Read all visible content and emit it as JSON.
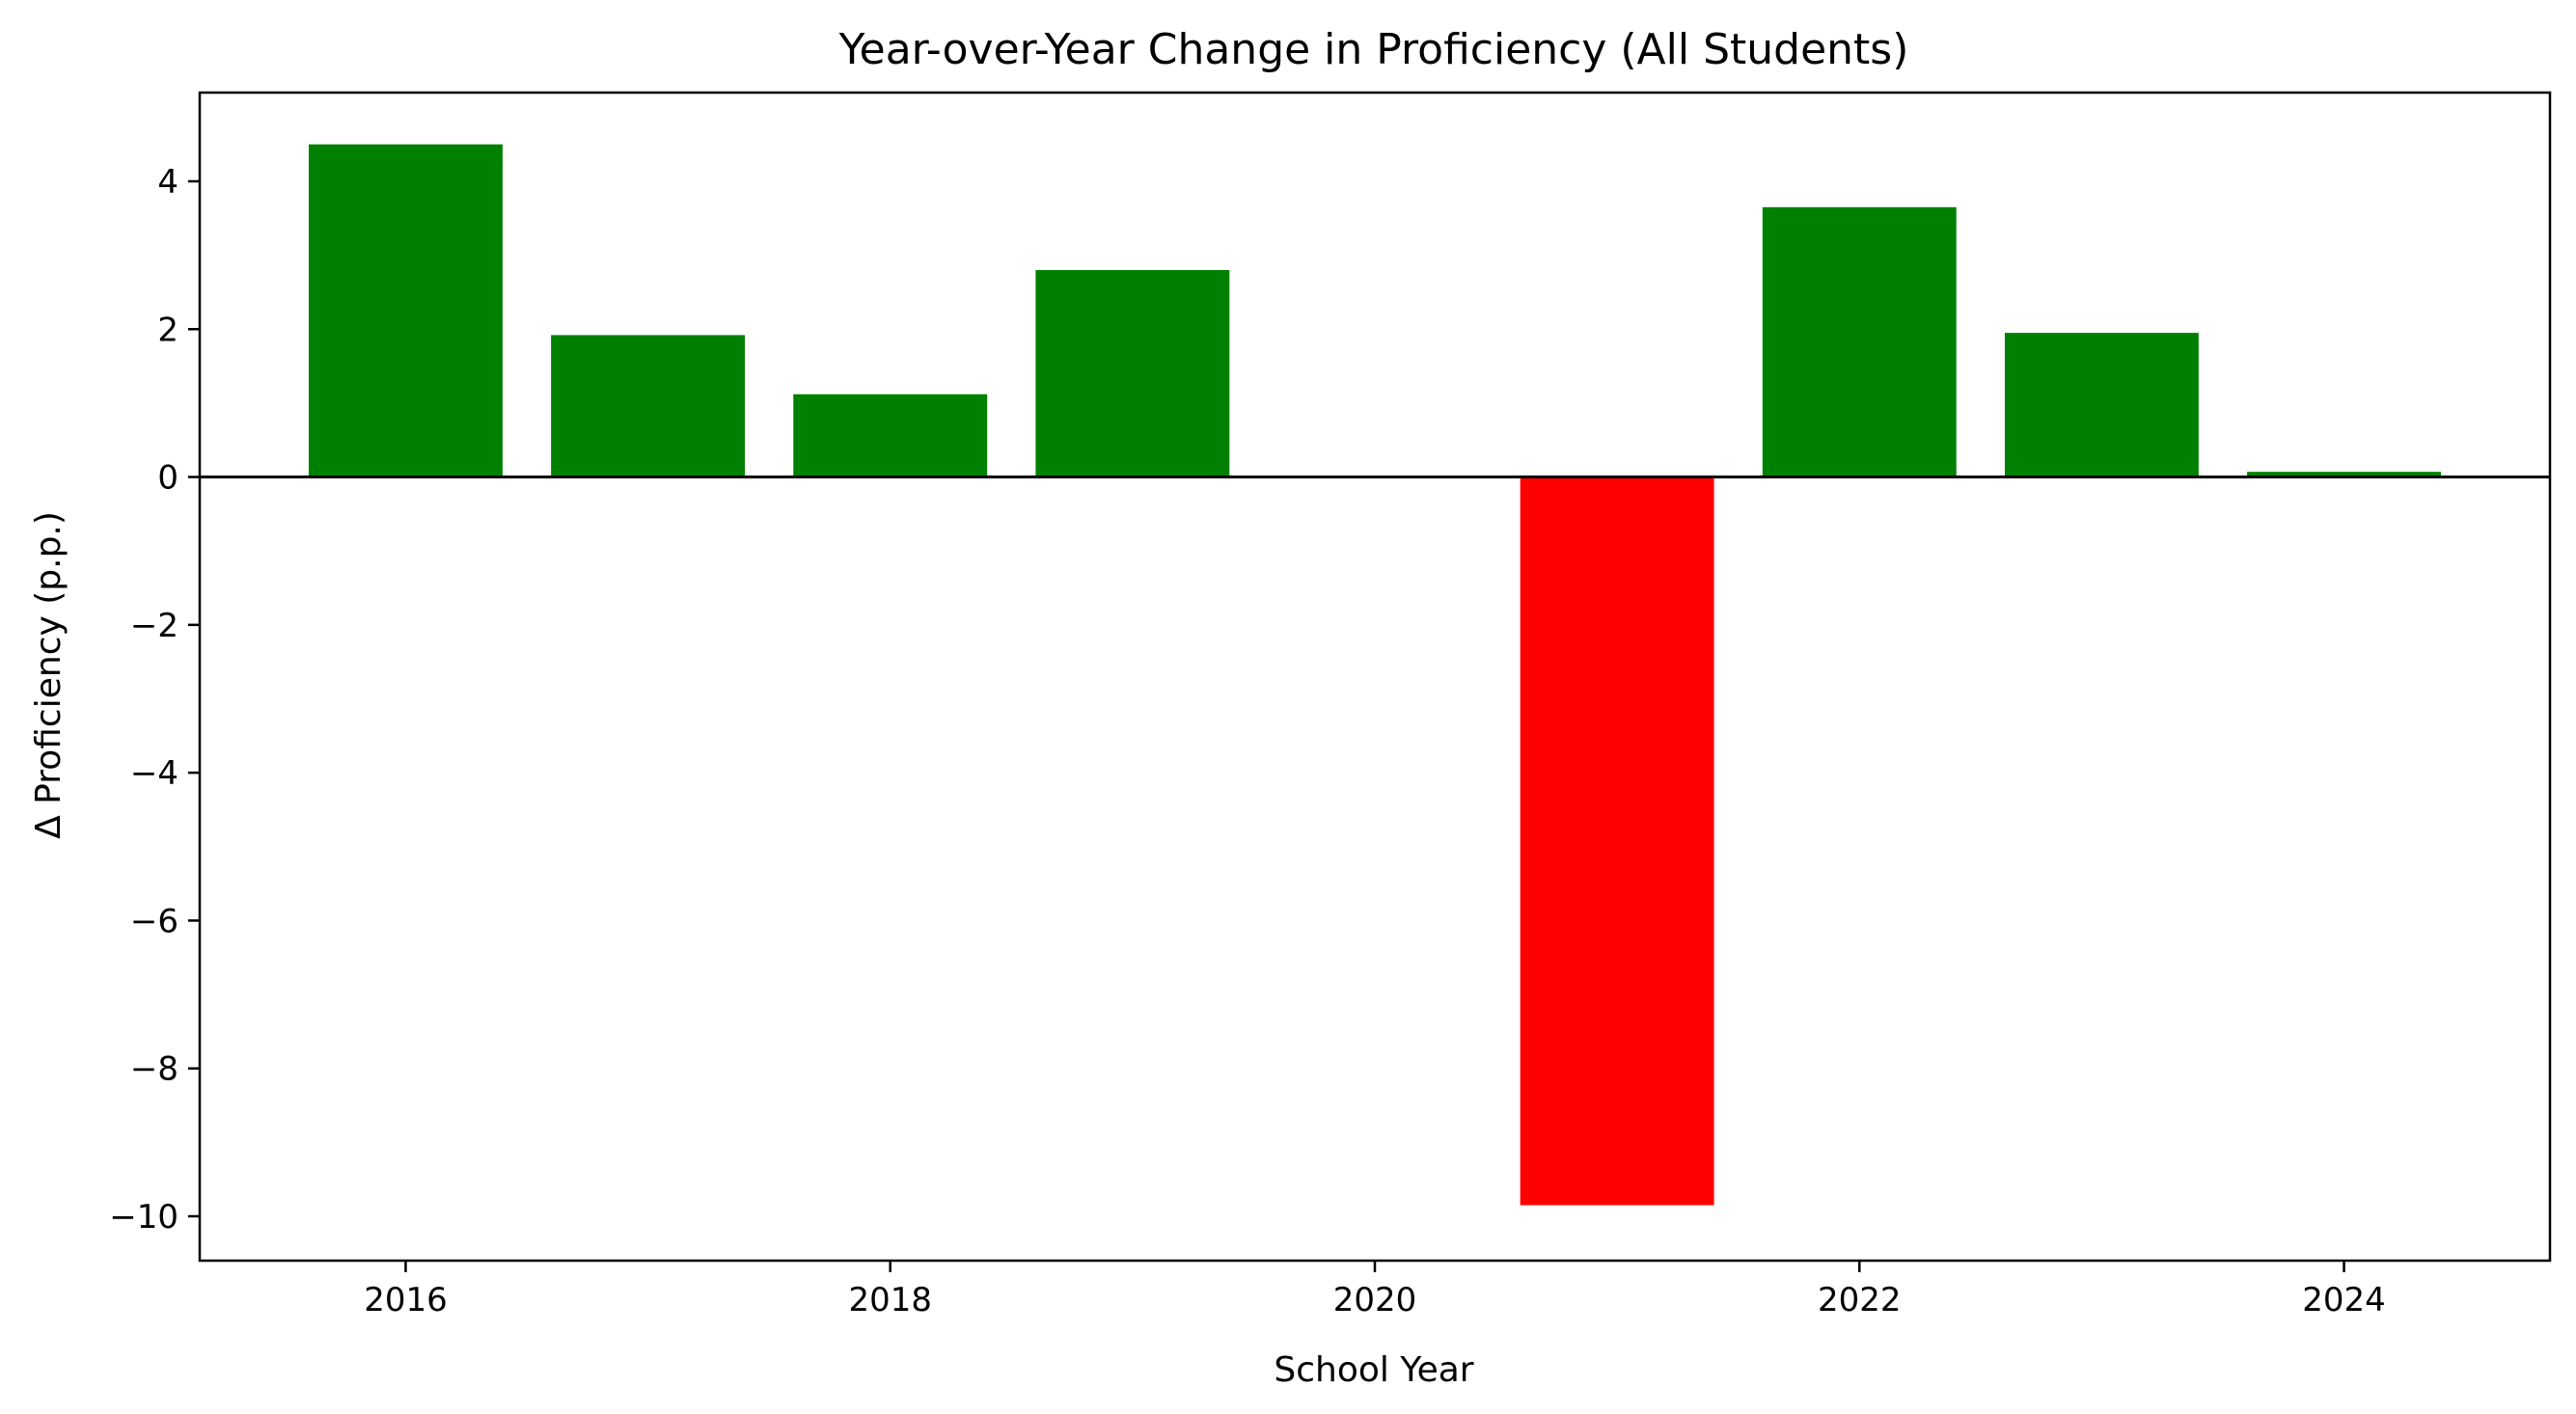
{
  "chart_data": {
    "type": "bar",
    "title": "Year-over-Year Change in Proficiency (All Students)",
    "xlabel": "School Year",
    "ylabel": "Δ Proficiency (p.p.)",
    "x": [
      2016,
      2017,
      2018,
      2019,
      2020,
      2021,
      2022,
      2023,
      2024
    ],
    "values": [
      4.5,
      1.92,
      1.12,
      2.8,
      0.0,
      -9.85,
      3.65,
      1.95,
      0.07
    ],
    "xlim": [
      2015.15,
      2024.85
    ],
    "ylim": [
      -10.6,
      5.2
    ],
    "xticks": [
      2016,
      2018,
      2020,
      2022,
      2024
    ],
    "yticks": [
      4,
      2,
      0,
      -2,
      -4,
      -6,
      -8,
      -10
    ],
    "yticklabels": [
      "4",
      "2",
      "0",
      "−2",
      "−4",
      "−6",
      "−8",
      "−10"
    ],
    "bar_width": 0.8,
    "colors": {
      "positive": "#008000",
      "negative": "#ff0000",
      "baseline": "#000000"
    },
    "grid": false,
    "baseline_at_zero": true
  }
}
